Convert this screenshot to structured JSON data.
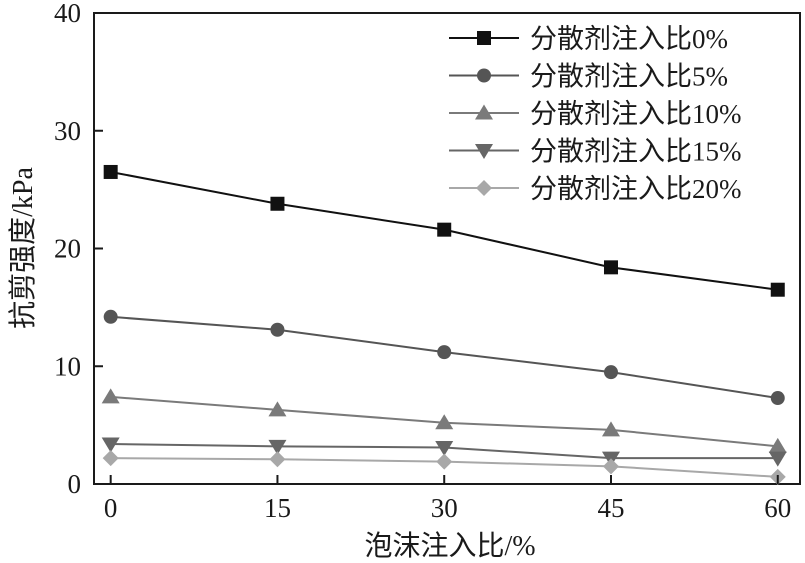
{
  "chart_data": {
    "type": "line",
    "title": "",
    "xlabel": "泡沫注入比/%",
    "ylabel": "抗剪强度/kPa",
    "x": [
      0,
      15,
      30,
      45,
      60
    ],
    "xticks": [
      "0",
      "15",
      "30",
      "45",
      "60"
    ],
    "yticks": [
      "0",
      "10",
      "20",
      "30",
      "40"
    ],
    "xlim": [
      -1.5,
      62
    ],
    "ylim": [
      0,
      40
    ],
    "grid": false,
    "legend_position": "top-right",
    "series": [
      {
        "name": "分散剂注入比0%",
        "marker": "square",
        "color": "#111111",
        "values": [
          26.5,
          23.8,
          21.6,
          18.4,
          16.5
        ]
      },
      {
        "name": "分散剂注入比5%",
        "marker": "circle",
        "color": "#555555",
        "values": [
          14.2,
          13.1,
          11.2,
          9.5,
          7.3
        ]
      },
      {
        "name": "分散剂注入比10%",
        "marker": "triangle-up",
        "color": "#7a7a7a",
        "values": [
          7.4,
          6.3,
          5.2,
          4.6,
          3.2
        ]
      },
      {
        "name": "分散剂注入比15%",
        "marker": "triangle-down",
        "color": "#666666",
        "values": [
          3.4,
          3.2,
          3.1,
          2.2,
          2.2
        ]
      },
      {
        "name": "分散剂注入比20%",
        "marker": "diamond",
        "color": "#a8a8a8",
        "values": [
          2.2,
          2.1,
          1.9,
          1.5,
          0.6
        ]
      }
    ]
  }
}
